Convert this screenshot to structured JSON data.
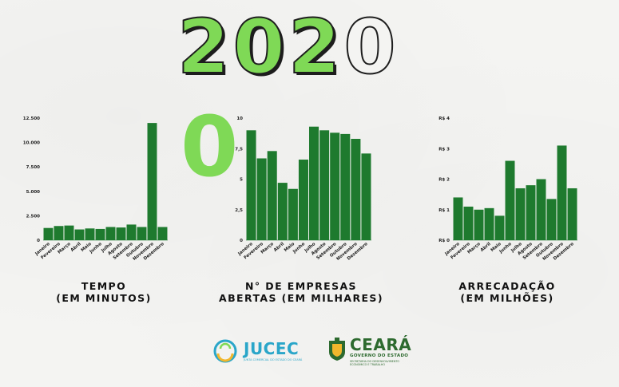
{
  "year": {
    "digits": [
      "2",
      "0",
      "2",
      "0"
    ],
    "extra_digit": "0"
  },
  "colors": {
    "bar": "#1e7a2e",
    "accent": "#7fd956",
    "outline": "#1d1d1d",
    "jucec": "#2aa6c9",
    "ceara": "#2d6a2f"
  },
  "titles": {
    "tempo": [
      "TEMPO",
      "(EM MINUTOS)"
    ],
    "empresas": [
      "N° DE EMPRESAS",
      "ABERTAS (EM MILHARES)"
    ],
    "arrecadacao": [
      "ARRECADAÇÃO",
      "(EM MILHÕES)"
    ]
  },
  "logos": {
    "jucec": {
      "name": "JUCEC",
      "subtitle": "JUNTA COMERCIAL DO ESTADO DO CEARÁ"
    },
    "ceara": {
      "name": "CEARÁ",
      "gov": "GOVERNO DO ESTADO",
      "sec": [
        "SECRETARIA DO DESENVOLVIMENTO",
        "ECONÔMICO E TRABALHO"
      ]
    }
  },
  "chart_data": [
    {
      "type": "bar",
      "title": "TEMPO (EM MINUTOS)",
      "categories": [
        "Janeiro",
        "Fevereiro",
        "Março",
        "Abril",
        "Maio",
        "Junho",
        "Julho",
        "Agosto",
        "Setembro",
        "Outubro",
        "Novembro",
        "Dezembro"
      ],
      "values": [
        1250,
        1450,
        1500,
        1100,
        1200,
        1150,
        1350,
        1300,
        1600,
        1350,
        12000,
        1350
      ],
      "ylim": [
        0,
        12500
      ],
      "yticks": [
        0,
        2500,
        5000,
        7500,
        10000,
        12500
      ],
      "ytick_labels": [
        "0",
        "2.500",
        "5.000",
        "7.500",
        "10.000",
        "12.500"
      ],
      "grid": false
    },
    {
      "type": "bar",
      "title": "N° DE EMPRESAS ABERTAS (EM MILHARES)",
      "categories": [
        "Janeiro",
        "Fevereiro",
        "Março",
        "Abril",
        "Maio",
        "Junho",
        "Julho",
        "Agosto",
        "Setembro",
        "Outubro",
        "Novembro",
        "Dezembro"
      ],
      "values": [
        9.0,
        6.7,
        7.3,
        4.7,
        4.2,
        6.6,
        9.3,
        9.0,
        8.8,
        8.7,
        8.3,
        7.1
      ],
      "ylim": [
        0,
        10
      ],
      "yticks": [
        0,
        2.5,
        5,
        7.5,
        10
      ],
      "ytick_labels": [
        "0",
        "2,5",
        "5",
        "7,5",
        "10"
      ],
      "grid": false
    },
    {
      "type": "bar",
      "title": "ARRECADAÇÃO (EM MILHÕES)",
      "categories": [
        "Janeiro",
        "Fevereiro",
        "Março",
        "Abril",
        "Maio",
        "Junho",
        "Julho",
        "Agosto",
        "Setembro",
        "Outubro",
        "Novembro",
        "Dezembro"
      ],
      "values": [
        1.4,
        1.1,
        1.0,
        1.05,
        0.8,
        2.6,
        1.7,
        1.8,
        2.0,
        1.35,
        3.1,
        1.7
      ],
      "ylim": [
        0,
        4
      ],
      "yticks": [
        0,
        1,
        2,
        3,
        4
      ],
      "ytick_labels": [
        "R$ 0",
        "R$ 1",
        "R$ 2",
        "R$ 3",
        "R$ 4"
      ],
      "grid": false
    }
  ]
}
